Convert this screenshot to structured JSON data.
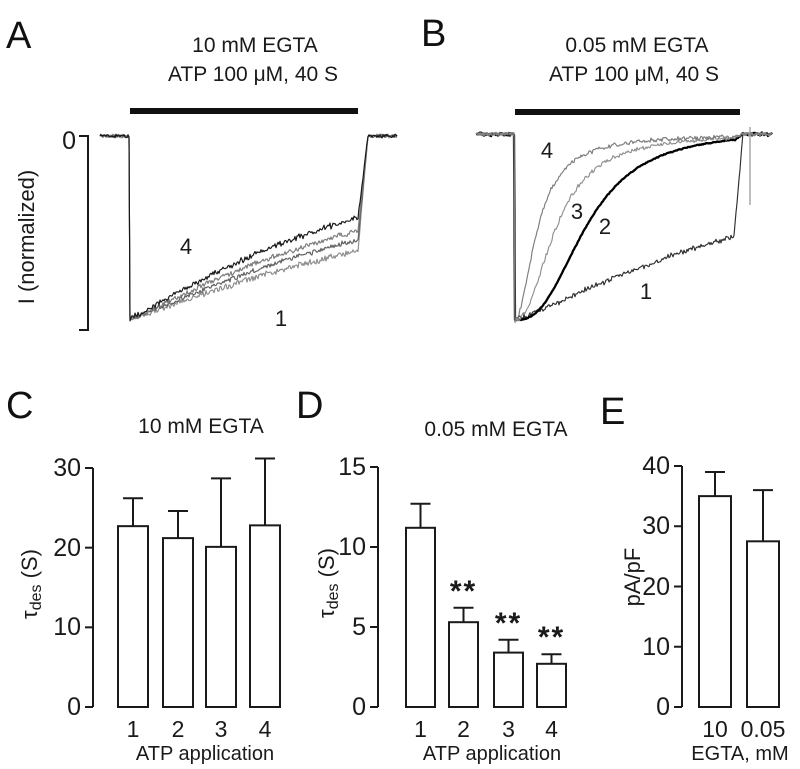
{
  "panels": {
    "A": {
      "letter": "A",
      "title": "10 mM EGTA",
      "subtitle": "ATP 100 μM, 40 S",
      "ylabel": "I (normalized)",
      "zero": "0"
    },
    "B": {
      "letter": "B",
      "title": "0.05 mM EGTA",
      "subtitle": "ATP 100 μM, 40 S"
    },
    "C": {
      "letter": "C",
      "title": "10 mM EGTA",
      "xlabel": "ATP application",
      "ylabel_tau": "τ",
      "ylabel_sub": "des",
      "ylabel_unit": " (S)"
    },
    "D": {
      "letter": "D",
      "title": "0.05 mM EGTA",
      "xlabel": "ATP application",
      "ylabel_tau": "τ",
      "ylabel_sub": "des",
      "ylabel_unit": " (S)"
    },
    "E": {
      "letter": "E",
      "ylabel": "pA/pF",
      "xlabel": "EGTA, mM"
    }
  },
  "colors": {
    "ink": "#1a1a1a",
    "bar_fill": "#ffffff",
    "application_bar": "#111111",
    "artifact": "#9a9a9a"
  },
  "chart_data": [
    {
      "panel": "A",
      "type": "line",
      "title": "10 mM EGTA",
      "annotation": "ATP 100 μM, 40 S",
      "ylabel": "I (normalized)",
      "baseline_tick_label": "0",
      "application_duration_s": 40,
      "description": "Normalized ATP-evoked inward currents; 4 successive applications, slow desensitization, traces superimposed",
      "traces": [
        {
          "label": "1",
          "color": "#8c8c8c",
          "start_fraction": 1.0,
          "end_fraction": 0.63,
          "t50": 1.6,
          "hill": 1.2,
          "noise": 3.5
        },
        {
          "label": "2",
          "color": "#5f5f5f",
          "start_fraction": 1.0,
          "end_fraction": 0.57,
          "t50": 1.45,
          "hill": 1.2,
          "noise": 3.0
        },
        {
          "label": "3",
          "color": "#7b7b7b",
          "start_fraction": 1.0,
          "end_fraction": 0.52,
          "t50": 1.3,
          "hill": 1.2,
          "noise": 3.0
        },
        {
          "label": "4",
          "color": "#161616",
          "start_fraction": 1.0,
          "end_fraction": 0.45,
          "t50": 1.15,
          "hill": 1.2,
          "noise": 3.5
        }
      ]
    },
    {
      "panel": "B",
      "type": "line",
      "title": "0.05 mM EGTA",
      "annotation": "ATP 100 μM, 40 S",
      "ylabel": "I (normalized)",
      "application_duration_s": 40,
      "description": "Normalized ATP-evoked currents; desensitization speeds up with successive applications 1-4",
      "traces": [
        {
          "label": "1",
          "color": "#2e2e2e",
          "start_fraction": 1.0,
          "end_fraction": 0.55,
          "t50": 1.5,
          "hill": 1.2,
          "noise": 3.2
        },
        {
          "label": "2",
          "color": "#000000",
          "start_fraction": 1.0,
          "end_fraction": 0.03,
          "t50": 0.33,
          "hill": 2.6,
          "noise": 0.6
        },
        {
          "label": "3",
          "color": "#8f8f8f",
          "start_fraction": 1.0,
          "end_fraction": 0.02,
          "t50": 0.19,
          "hill": 2.2,
          "noise": 2.6
        },
        {
          "label": "4",
          "color": "#7c7c7c",
          "start_fraction": 1.0,
          "end_fraction": 0.015,
          "t50": 0.105,
          "hill": 1.9,
          "noise": 2.6
        }
      ]
    },
    {
      "panel": "C",
      "type": "bar",
      "title": "10 mM EGTA",
      "xlabel": "ATP application",
      "ylabel": "τdes (S)",
      "categories": [
        "1",
        "2",
        "3",
        "4"
      ],
      "values": [
        22.7,
        21.2,
        20.1,
        22.8
      ],
      "errors_upper": [
        3.5,
        3.4,
        8.6,
        8.4
      ],
      "sig": [
        "",
        "",
        "",
        ""
      ],
      "ylim": [
        0,
        30
      ],
      "yticks": [
        0,
        10,
        20,
        30
      ]
    },
    {
      "panel": "D",
      "type": "bar",
      "title": "0.05 mM EGTA",
      "xlabel": "ATP application",
      "ylabel": "τdes (S)",
      "categories": [
        "1",
        "2",
        "3",
        "4"
      ],
      "values": [
        11.2,
        5.3,
        3.4,
        2.7
      ],
      "errors_upper": [
        1.5,
        0.9,
        0.8,
        0.6
      ],
      "sig": [
        "",
        "**",
        "**",
        "**"
      ],
      "ylim": [
        0,
        15
      ],
      "yticks": [
        0,
        5,
        10,
        15
      ]
    },
    {
      "panel": "E",
      "type": "bar",
      "title": "",
      "xlabel": "EGTA, mM",
      "ylabel": "pA/pF",
      "categories": [
        "10",
        "0.05"
      ],
      "values": [
        35,
        27.5
      ],
      "errors_upper": [
        4,
        8.5
      ],
      "sig": [
        "",
        ""
      ],
      "ylim": [
        0,
        40
      ],
      "yticks": [
        0,
        10,
        20,
        30,
        40
      ]
    }
  ]
}
